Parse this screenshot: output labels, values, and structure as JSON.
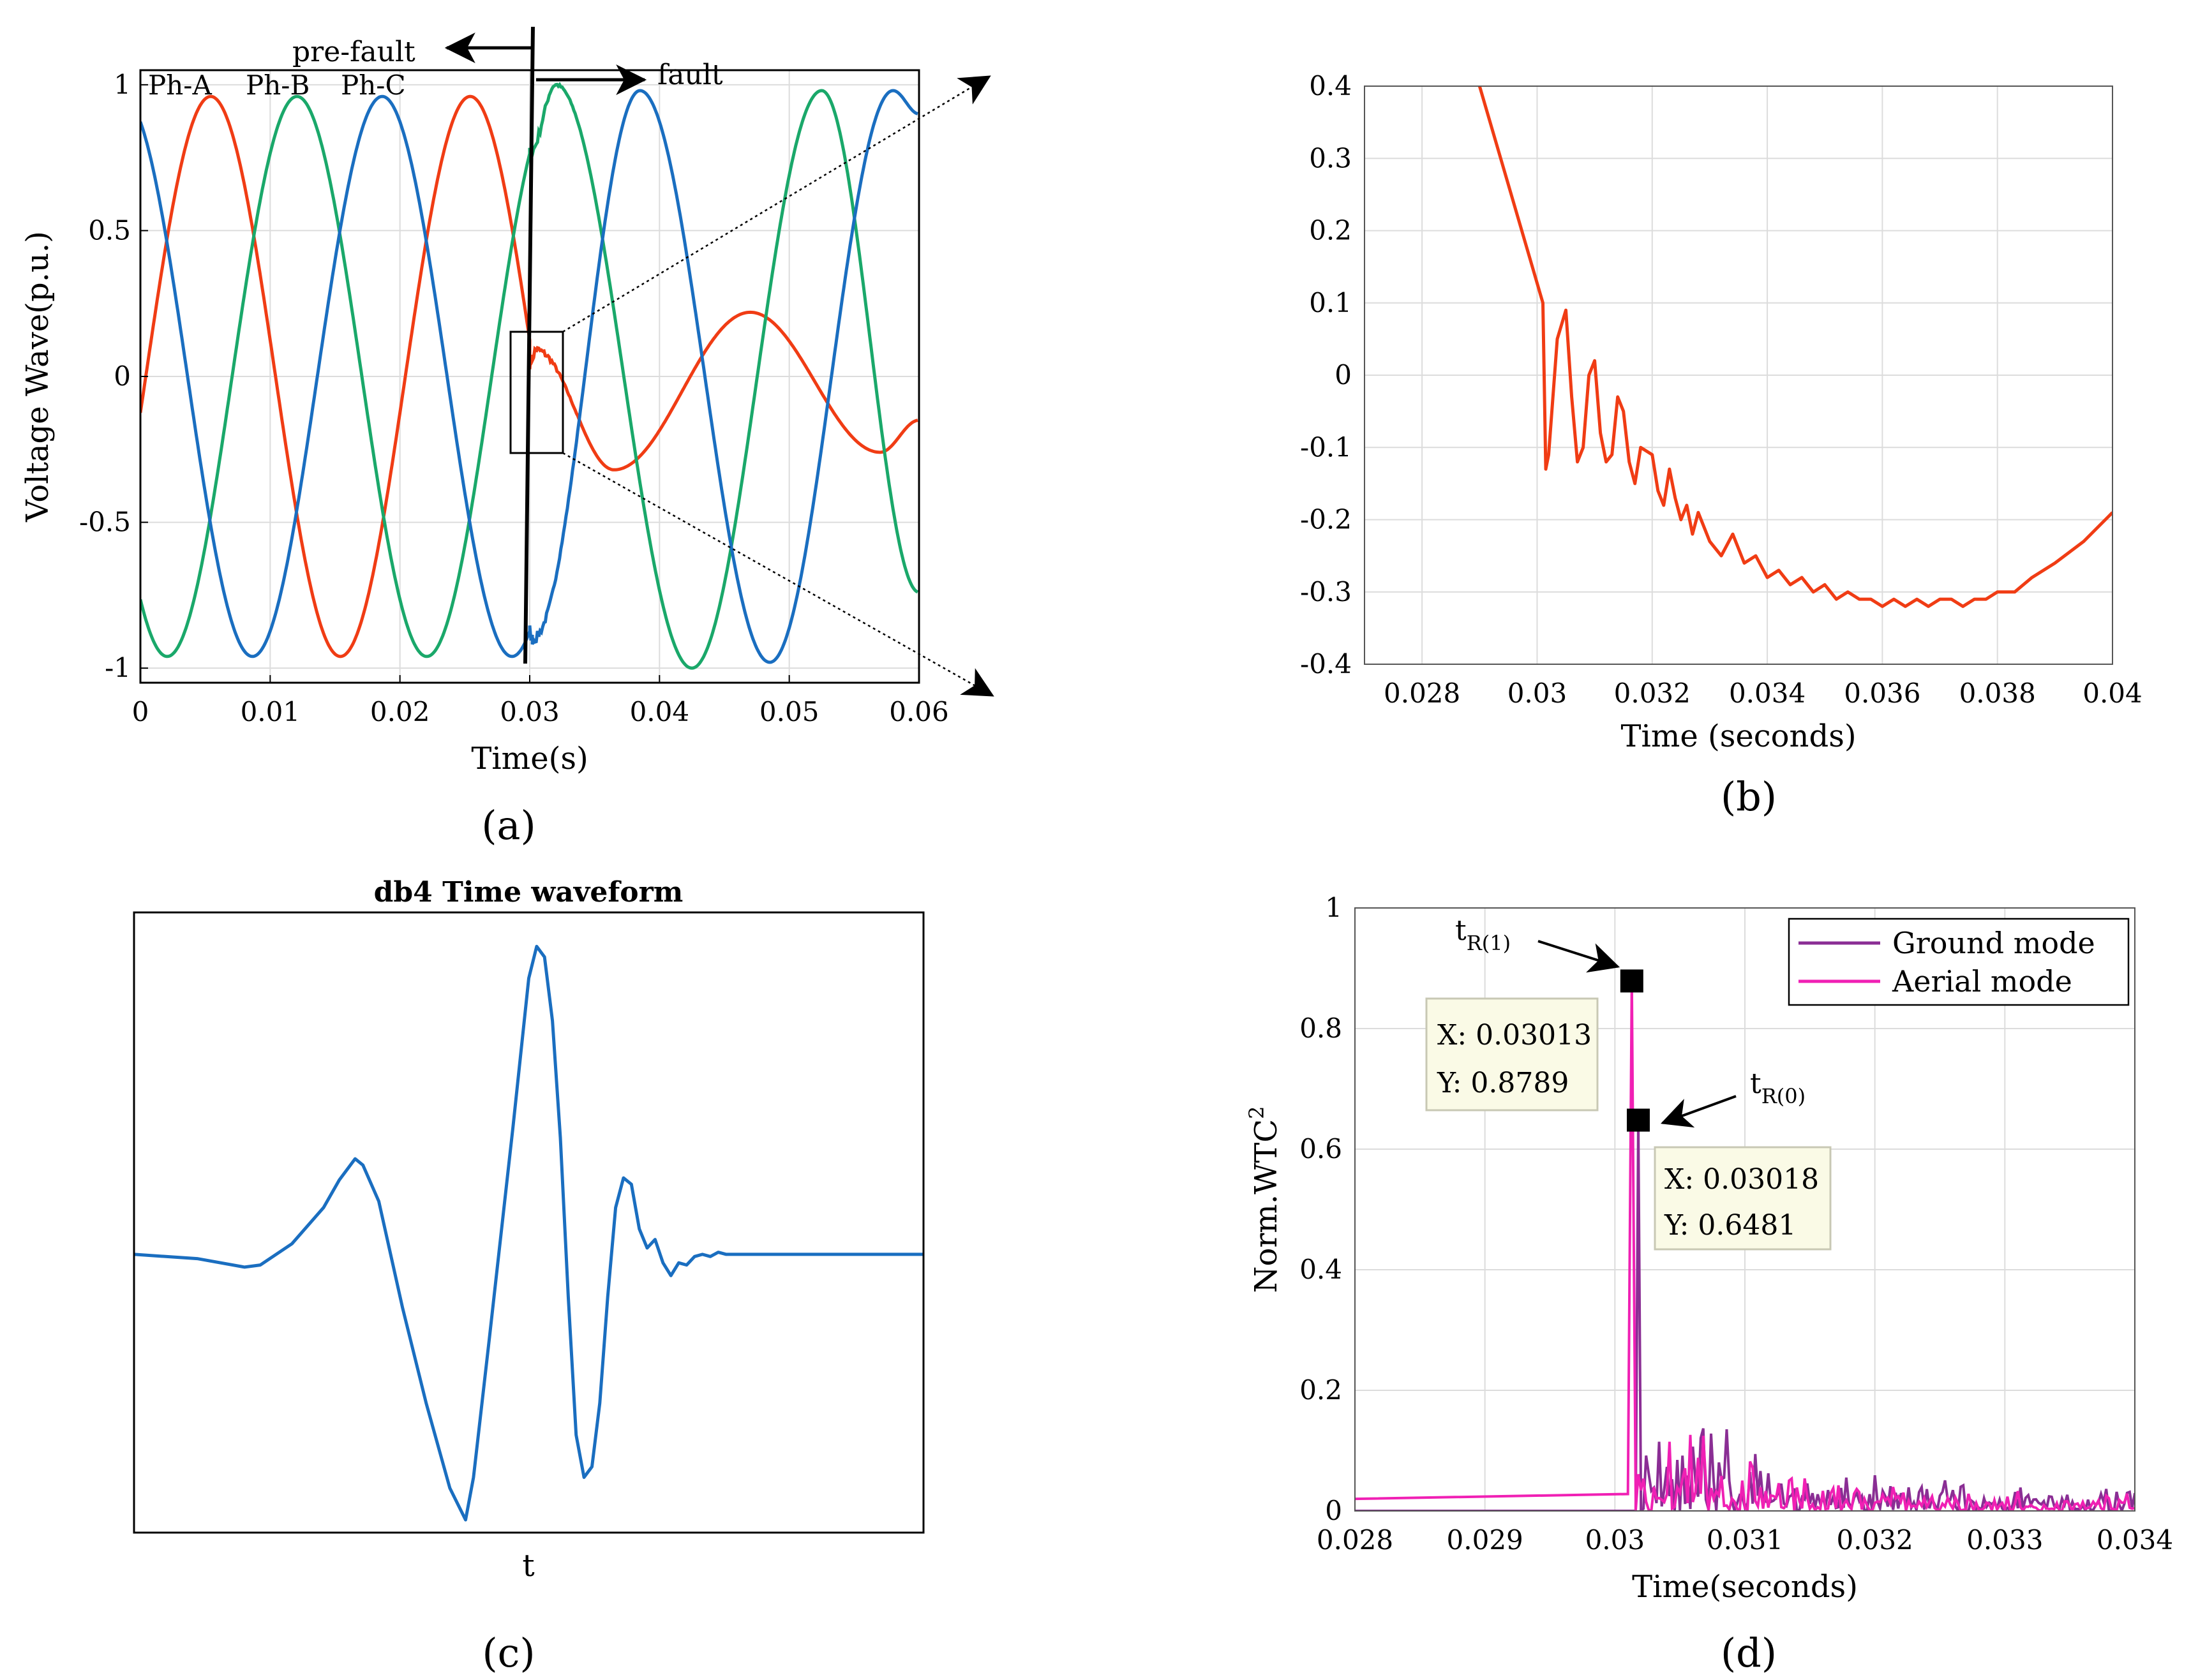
{
  "chart_data": [
    {
      "panel": "a",
      "caption": "(a)",
      "type": "line",
      "xlabel": "Time(s)",
      "ylabel": "Voltage Wave(p.u.)",
      "xlim": [
        0,
        0.06
      ],
      "ylim": [
        -1.05,
        1.05
      ],
      "xticks": [
        "0",
        "0.01",
        "0.02",
        "0.03",
        "0.04",
        "0.05",
        "0.06"
      ],
      "yticks": [
        "-1",
        "-0.5",
        "0",
        "0.5",
        "1"
      ],
      "series": [
        {
          "name": "Ph-A",
          "color": "#f03c14",
          "prefault": "0.96*sin(2*pi*50*t - 0.13)",
          "postfault_peaks": [
            [
              0.0305,
              0.09
            ],
            [
              0.0365,
              -0.32
            ],
            [
              0.047,
              0.22
            ],
            [
              0.057,
              -0.26
            ],
            [
              0.06,
              -0.15
            ]
          ]
        },
        {
          "name": "Ph-B",
          "color": "#1aa86a",
          "prefault": "0.96*sin(2*pi*50*t - 2.22)",
          "postfault_peaks": [
            [
              0.032,
              1.0
            ],
            [
              0.0425,
              -1.0
            ],
            [
              0.0525,
              0.98
            ],
            [
              0.06,
              -0.74
            ]
          ]
        },
        {
          "name": "Ph-C",
          "color": "#1a6ec0",
          "prefault": "0.96*sin(2*pi*50*t + 2.0)",
          "postfault_peaks": [
            [
              0.0302,
              -0.9
            ],
            [
              0.0385,
              0.98
            ],
            [
              0.0485,
              -0.98
            ],
            [
              0.058,
              0.98
            ],
            [
              0.06,
              0.9
            ]
          ]
        }
      ],
      "fault_time": 0.03,
      "labels": {
        "pre_fault": "pre-fault",
        "fault": "fault"
      }
    },
    {
      "panel": "b",
      "caption": "(b)",
      "type": "line",
      "xlabel": "Time (seconds)",
      "xlim": [
        0.027,
        0.04
      ],
      "ylim": [
        -0.4,
        0.4
      ],
      "xticks": [
        "0.028",
        "0.03",
        "0.032",
        "0.034",
        "0.036",
        "0.038",
        "0.04"
      ],
      "yticks": [
        "0.4",
        "0.3",
        "0.2",
        "0.1",
        "0",
        "-0.1",
        "-0.2",
        "-0.3",
        "-0.4"
      ],
      "series": [
        {
          "name": "Ph-A zoom",
          "color": "#f03c14",
          "x": [
            0.029,
            0.0301,
            0.03015,
            0.0302,
            0.03035,
            0.0305,
            0.0306,
            0.0307,
            0.0308,
            0.0309,
            0.031,
            0.0311,
            0.0312,
            0.0313,
            0.0314,
            0.0315,
            0.0316,
            0.0317,
            0.0318,
            0.032,
            0.0321,
            0.0322,
            0.0323,
            0.0324,
            0.0325,
            0.0326,
            0.0327,
            0.0328,
            0.033,
            0.0332,
            0.0334,
            0.0336,
            0.0338,
            0.034,
            0.0342,
            0.0344,
            0.0346,
            0.0348,
            0.035,
            0.0352,
            0.0354,
            0.0356,
            0.0358,
            0.036,
            0.0362,
            0.0364,
            0.0366,
            0.0368,
            0.037,
            0.0372,
            0.0374,
            0.0376,
            0.0378,
            0.038,
            0.0383,
            0.0386,
            0.039,
            0.0395,
            0.04
          ],
          "y": [
            0.4,
            0.1,
            -0.13,
            -0.11,
            0.05,
            0.09,
            -0.03,
            -0.12,
            -0.1,
            0.0,
            0.02,
            -0.08,
            -0.12,
            -0.11,
            -0.03,
            -0.05,
            -0.12,
            -0.15,
            -0.1,
            -0.11,
            -0.16,
            -0.18,
            -0.13,
            -0.17,
            -0.2,
            -0.18,
            -0.22,
            -0.19,
            -0.23,
            -0.25,
            -0.22,
            -0.26,
            -0.25,
            -0.28,
            -0.27,
            -0.29,
            -0.28,
            -0.3,
            -0.29,
            -0.31,
            -0.3,
            -0.31,
            -0.31,
            -0.32,
            -0.31,
            -0.32,
            -0.31,
            -0.32,
            -0.31,
            -0.31,
            -0.32,
            -0.31,
            -0.31,
            -0.3,
            -0.3,
            -0.28,
            -0.26,
            -0.23,
            -0.19
          ]
        }
      ]
    },
    {
      "panel": "c",
      "caption": "(c)",
      "type": "line",
      "title": "db4 Time waveform",
      "xlabel": "t",
      "xlim": [
        0,
        100
      ],
      "ylim": [
        -1.25,
        1.55
      ],
      "series": [
        {
          "name": "db4 wavelet",
          "color": "#1a6ec0",
          "x": [
            0,
            8,
            14,
            16,
            20,
            24,
            26,
            28,
            29,
            31,
            34,
            37,
            40,
            42,
            43,
            45,
            48,
            50,
            51,
            52,
            53,
            54,
            55,
            56,
            57,
            58,
            59,
            60,
            61,
            62,
            63,
            64,
            65,
            66,
            67,
            68,
            69,
            70,
            71,
            72,
            73,
            74,
            75,
            76,
            78,
            80,
            82,
            85,
            90,
            100
          ],
          "y": [
            0.0,
            -0.02,
            -0.06,
            -0.05,
            0.05,
            0.22,
            0.35,
            0.45,
            0.42,
            0.25,
            -0.25,
            -0.7,
            -1.1,
            -1.25,
            -1.05,
            -0.4,
            0.6,
            1.3,
            1.45,
            1.4,
            1.1,
            0.55,
            -0.2,
            -0.85,
            -1.05,
            -1.0,
            -0.7,
            -0.2,
            0.22,
            0.36,
            0.33,
            0.12,
            0.03,
            0.07,
            -0.04,
            -0.1,
            -0.04,
            -0.05,
            -0.01,
            0.0,
            -0.01,
            0.01,
            0.0,
            0.0,
            0.0,
            0.0,
            0.0,
            0.0,
            0.0,
            0.0
          ]
        }
      ]
    },
    {
      "panel": "d",
      "caption": "(d)",
      "type": "line",
      "xlabel": "Time(seconds)",
      "ylabel": "Norm.WTC",
      "ylabel_sup": "2",
      "xlim": [
        0.028,
        0.034
      ],
      "ylim": [
        0,
        1
      ],
      "xticks": [
        "0.028",
        "0.029",
        "0.03",
        "0.031",
        "0.032",
        "0.033",
        "0.034"
      ],
      "yticks": [
        "1",
        "0.8",
        "0.6",
        "0.4",
        "0.2",
        "0"
      ],
      "legend": [
        "Ground mode",
        "Aerial mode"
      ],
      "series": [
        {
          "name": "Ground mode",
          "color": "#8a2e94",
          "peak": [
            0.03018,
            0.6481
          ]
        },
        {
          "name": "Aerial mode",
          "color": "#f020b4",
          "peak": [
            0.03013,
            0.8789
          ],
          "baseline": 0.02
        }
      ],
      "datatips": [
        {
          "x_text": "X: 0.03013",
          "y_text": "Y: 0.8789"
        },
        {
          "x_text": "X: 0.03018",
          "y_text": "Y: 0.6481"
        }
      ],
      "markers": [
        {
          "label": "t",
          "sub": "R(1)"
        },
        {
          "label": "t",
          "sub": "R(0)"
        }
      ]
    }
  ]
}
